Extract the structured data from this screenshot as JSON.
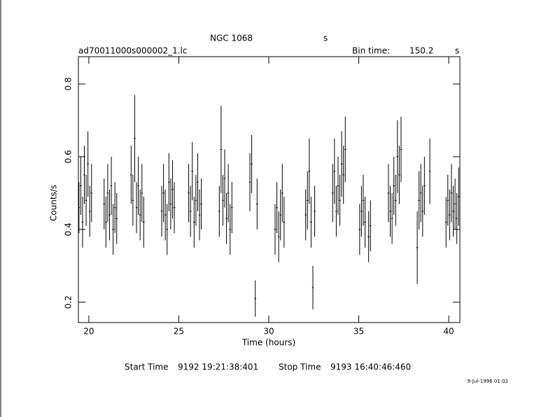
{
  "chart_data": {
    "type": "errorbar",
    "title": "NGC 1068",
    "title_suffix": "s",
    "subtitle": "ad70011000s000002_1.lc",
    "bin_time_label": "Bin time:",
    "bin_time": 150.2,
    "bin_time_unit": "s",
    "x_label": "Time (hours)",
    "y_label": "Counts/s",
    "start_time_label": "Start Time",
    "start_time": "9192 19:21:38:401",
    "stop_time_label": "Stop Time",
    "stop_time": "9193 16:40:46:460",
    "timestamp": "9-Jul-1996 01:02",
    "color": "#000000",
    "xlim": [
      19.42,
      40.62
    ],
    "ylim": [
      0.144,
      0.875
    ],
    "xticks": [
      20,
      25,
      30,
      35,
      40
    ],
    "yticks": [
      0.2,
      0.4,
      0.6,
      0.8
    ],
    "x": [
      19.45,
      19.55,
      19.65,
      19.75,
      19.85,
      19.95,
      20.05,
      20.15,
      20.85,
      20.95,
      21.05,
      21.15,
      21.25,
      21.35,
      21.45,
      21.55,
      22.35,
      22.45,
      22.55,
      22.65,
      22.75,
      22.85,
      22.95,
      23.05,
      24.05,
      24.15,
      24.25,
      24.35,
      24.45,
      24.55,
      24.65,
      24.75,
      25.55,
      25.65,
      25.75,
      25.85,
      25.95,
      26.05,
      26.15,
      26.25,
      27.25,
      27.35,
      27.45,
      27.55,
      27.65,
      27.75,
      27.85,
      27.95,
      28.95,
      29.05,
      29.25,
      29.35,
      30.35,
      30.45,
      30.55,
      30.65,
      30.75,
      30.85,
      32.05,
      32.15,
      32.25,
      32.35,
      32.45,
      32.55,
      33.55,
      33.65,
      33.75,
      33.85,
      33.95,
      34.05,
      34.15,
      34.25,
      35.05,
      35.15,
      35.25,
      35.35,
      35.55,
      35.65,
      36.65,
      36.75,
      36.85,
      36.95,
      37.05,
      37.15,
      37.25,
      37.35,
      38.25,
      38.35,
      38.45,
      38.55,
      38.65,
      38.95,
      39.85,
      39.95,
      40.05,
      40.15,
      40.25,
      40.35,
      40.45,
      40.55
    ],
    "values": [
      0.46,
      0.52,
      0.42,
      0.55,
      0.48,
      0.58,
      0.45,
      0.5,
      0.47,
      0.42,
      0.5,
      0.44,
      0.52,
      0.4,
      0.46,
      0.43,
      0.55,
      0.48,
      0.65,
      0.46,
      0.52,
      0.44,
      0.5,
      0.42,
      0.45,
      0.5,
      0.44,
      0.4,
      0.53,
      0.47,
      0.51,
      0.46,
      0.5,
      0.45,
      0.56,
      0.42,
      0.48,
      0.53,
      0.44,
      0.47,
      0.45,
      0.62,
      0.48,
      0.54,
      0.43,
      0.5,
      0.4,
      0.46,
      0.53,
      0.58,
      0.21,
      0.47,
      0.4,
      0.46,
      0.38,
      0.44,
      0.5,
      0.42,
      0.44,
      0.48,
      0.56,
      0.42,
      0.24,
      0.45,
      0.5,
      0.56,
      0.45,
      0.52,
      0.48,
      0.58,
      0.55,
      0.62,
      0.4,
      0.45,
      0.48,
      0.42,
      0.38,
      0.41,
      0.5,
      0.45,
      0.43,
      0.52,
      0.48,
      0.6,
      0.55,
      0.62,
      0.35,
      0.48,
      0.5,
      0.45,
      0.52,
      0.56,
      0.42,
      0.48,
      0.44,
      0.5,
      0.45,
      0.47,
      0.43,
      0.49
    ],
    "errors": [
      0.07,
      0.08,
      0.07,
      0.08,
      0.07,
      0.09,
      0.07,
      0.08,
      0.07,
      0.07,
      0.08,
      0.07,
      0.08,
      0.07,
      0.07,
      0.07,
      0.08,
      0.07,
      0.12,
      0.07,
      0.08,
      0.07,
      0.08,
      0.07,
      0.07,
      0.08,
      0.07,
      0.07,
      0.08,
      0.07,
      0.08,
      0.07,
      0.08,
      0.07,
      0.08,
      0.07,
      0.07,
      0.08,
      0.07,
      0.07,
      0.07,
      0.12,
      0.07,
      0.08,
      0.07,
      0.08,
      0.07,
      0.07,
      0.08,
      0.08,
      0.05,
      0.07,
      0.07,
      0.07,
      0.07,
      0.07,
      0.08,
      0.07,
      0.07,
      0.08,
      0.09,
      0.07,
      0.06,
      0.07,
      0.08,
      0.09,
      0.07,
      0.08,
      0.07,
      0.09,
      0.08,
      0.09,
      0.07,
      0.07,
      0.07,
      0.07,
      0.07,
      0.07,
      0.08,
      0.07,
      0.07,
      0.08,
      0.07,
      0.1,
      0.08,
      0.09,
      0.1,
      0.08,
      0.08,
      0.07,
      0.08,
      0.09,
      0.07,
      0.07,
      0.07,
      0.08,
      0.07,
      0.07,
      0.07,
      0.08
    ]
  }
}
